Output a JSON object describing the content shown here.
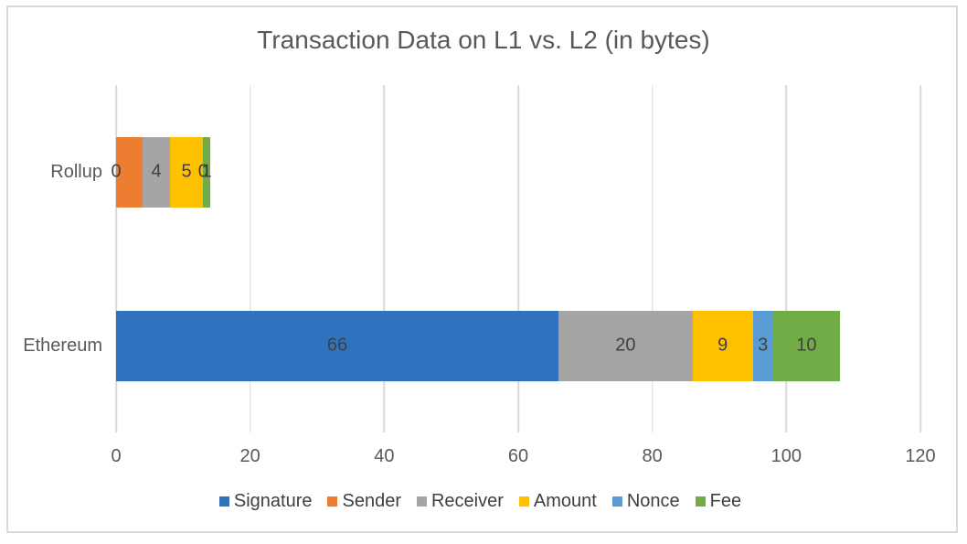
{
  "chart_data": {
    "type": "bar",
    "orientation": "horizontal",
    "stacked": true,
    "title": "Transaction Data on L1 vs. L2 (in bytes)",
    "categories": [
      "Rollup",
      "Ethereum"
    ],
    "series": [
      {
        "name": "Signature",
        "color": "#2F72BE",
        "values": [
          0,
          66
        ],
        "labels_visible": true
      },
      {
        "name": "Sender",
        "color": "#ED7D31",
        "values": [
          4,
          0
        ],
        "labels_visible": false
      },
      {
        "name": "Receiver",
        "color": "#A5A5A5",
        "values": [
          4,
          20
        ],
        "labels_visible": true
      },
      {
        "name": "Amount",
        "color": "#FFC000",
        "values": [
          5,
          9
        ],
        "labels_visible": true
      },
      {
        "name": "Nonce",
        "color": "#5B9BD5",
        "values": [
          0,
          3
        ],
        "labels_visible": true
      },
      {
        "name": "Fee",
        "color": "#70AD47",
        "values": [
          1,
          10
        ],
        "labels_visible": true
      }
    ],
    "totals": {
      "Rollup": 14,
      "Ethereum": 108
    },
    "xlim": [
      0,
      120
    ],
    "x_ticks": [
      "0",
      "20",
      "40",
      "60",
      "80",
      "100",
      "120"
    ],
    "grid": true,
    "legend_position": "bottom",
    "colors": {
      "grid": "#D9D9D9",
      "frame_border": "#D9D9D9",
      "axis_text": "#595959",
      "data_label_text": "#404040",
      "legend_text": "#404040",
      "background": "#FFFFFF"
    }
  }
}
